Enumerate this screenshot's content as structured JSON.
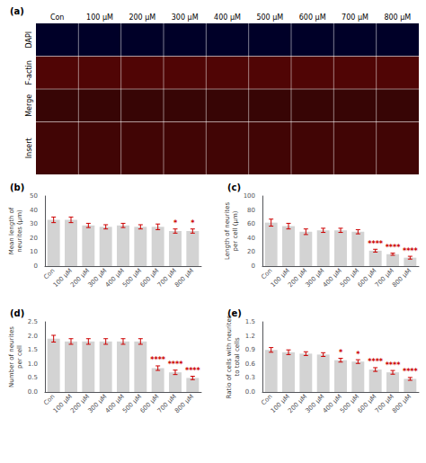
{
  "chart_data": [
    {
      "type": "image",
      "title": "(a)",
      "categories": [
        "Con",
        "100 μM",
        "200 μM",
        "300 μM",
        "400 μM",
        "500 μM",
        "600 μM",
        "700 μM",
        "800 μM"
      ],
      "rows": [
        "DAPI",
        "F-actin",
        "Merge",
        "Insert"
      ],
      "colors": [
        "#000028",
        "#500505",
        "#370505",
        "#410505"
      ]
    },
    {
      "type": "bar",
      "title": "(b)",
      "ylabel": "Mean length of\nneurites (μm)",
      "categories": [
        "Con",
        "100 μM",
        "200 μM",
        "300 μM",
        "400 μM",
        "500 μM",
        "600 μM",
        "700 μM",
        "800 μM"
      ],
      "values": [
        33,
        33,
        29,
        28,
        29,
        28,
        28,
        25,
        25
      ],
      "errors": {
        "values": [
          2.0,
          2.0,
          1.5,
          1.5,
          1.5,
          1.5,
          2.0,
          1.5,
          1.5
        ],
        "color": "#cc0000"
      },
      "annotations": [
        {
          "category": "700 μM",
          "text": "*",
          "color": "#cc0000"
        },
        {
          "category": "800 μM",
          "text": "*",
          "color": "#cc0000"
        }
      ],
      "color": "#d3d3d3",
      "ylim": [
        0,
        50
      ],
      "yticks": [
        0,
        10,
        20,
        30,
        40,
        50
      ],
      "grid": false
    },
    {
      "type": "bar",
      "title": "(c)",
      "ylabel": "Length of neurites\nper cell (μm)",
      "categories": [
        "Con",
        "100 μM",
        "200 μM",
        "300 μM",
        "400 μM",
        "500 μM",
        "600 μM",
        "700 μM",
        "800 μM"
      ],
      "values": [
        62,
        57,
        49,
        51,
        51,
        49,
        22,
        17,
        12
      ],
      "errors": {
        "values": [
          5.0,
          4.0,
          4.0,
          3.0,
          3.0,
          3.0,
          2.0,
          1.5,
          2.0
        ],
        "color": "#cc0000"
      },
      "annotations": [
        {
          "category": "600 μM",
          "text": "****",
          "color": "#cc0000"
        },
        {
          "category": "700 μM",
          "text": "****",
          "color": "#cc0000"
        },
        {
          "category": "800 μM",
          "text": "****",
          "color": "#cc0000"
        }
      ],
      "color": "#d3d3d3",
      "ylim": [
        0,
        100
      ],
      "yticks": [
        0,
        20,
        40,
        60,
        80,
        100
      ],
      "grid": false
    },
    {
      "type": "bar",
      "title": "(d)",
      "ylabel": "Number of neurites\nper cell",
      "categories": [
        "Con",
        "100 μM",
        "200 μM",
        "300 μM",
        "400 μM",
        "500 μM",
        "600 μM",
        "700 μM",
        "800 μM"
      ],
      "values": [
        1.9,
        1.8,
        1.8,
        1.8,
        1.8,
        1.8,
        0.85,
        0.7,
        0.5
      ],
      "errors": {
        "values": [
          0.12,
          0.1,
          0.1,
          0.1,
          0.1,
          0.1,
          0.08,
          0.08,
          0.06
        ],
        "color": "#cc0000"
      },
      "annotations": [
        {
          "category": "600 μM",
          "text": "****",
          "color": "#cc0000"
        },
        {
          "category": "700 μM",
          "text": "****",
          "color": "#cc0000"
        },
        {
          "category": "800 μM",
          "text": "****",
          "color": "#cc0000"
        }
      ],
      "color": "#d3d3d3",
      "ylim": [
        0,
        2.5
      ],
      "yticks": [
        {
          "value": 0,
          "label": "0.0"
        },
        0.5,
        {
          "value": 1.0,
          "label": "1.0"
        },
        1.5,
        {
          "value": 2.0,
          "label": "2.0"
        },
        2.5
      ],
      "grid": false
    },
    {
      "type": "bar",
      "title": "(e)",
      "ylabel": "Ratio of cells with neurites\nto total cells",
      "categories": [
        "Con",
        "100 μM",
        "200 μM",
        "300 μM",
        "400 μM",
        "500 μM",
        "600 μM",
        "700 μM",
        "800 μM"
      ],
      "values": [
        0.9,
        0.85,
        0.82,
        0.8,
        0.68,
        0.65,
        0.48,
        0.42,
        0.28
      ],
      "errors": {
        "values": [
          0.05,
          0.05,
          0.04,
          0.04,
          0.04,
          0.04,
          0.04,
          0.04,
          0.03
        ],
        "color": "#cc0000"
      },
      "annotations": [
        {
          "category": "400 μM",
          "text": "*",
          "color": "#cc0000"
        },
        {
          "category": "500 μM",
          "text": "*",
          "color": "#cc0000"
        },
        {
          "category": "600 μM",
          "text": "****",
          "color": "#cc0000"
        },
        {
          "category": "700 μM",
          "text": "****",
          "color": "#cc0000"
        },
        {
          "category": "800 μM",
          "text": "****",
          "color": "#cc0000"
        }
      ],
      "color": "#d3d3d3",
      "ylim": [
        0,
        1.5
      ],
      "yticks": [
        {
          "value": 0,
          "label": "0.0"
        },
        0.3,
        0.6,
        0.9,
        1.2,
        1.5
      ],
      "grid": false
    }
  ]
}
